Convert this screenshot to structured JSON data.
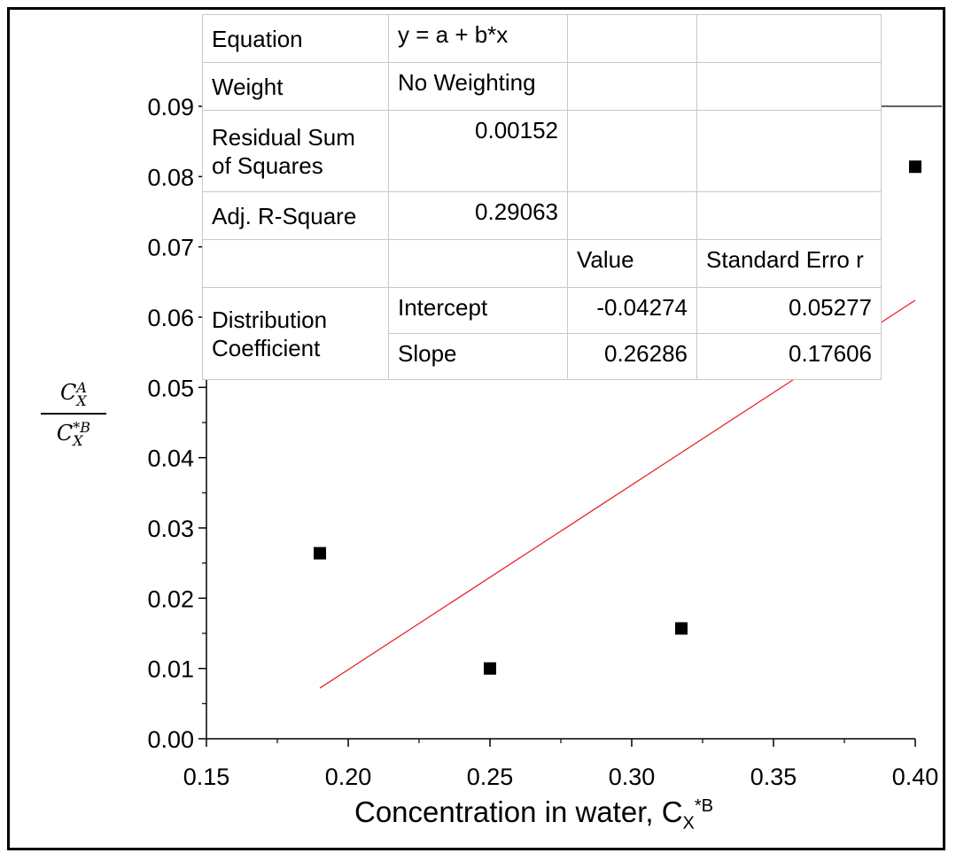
{
  "chart_data": {
    "type": "scatter",
    "x_ticks": [
      "0.15",
      "0.20",
      "0.25",
      "0.30",
      "0.35",
      "0.40"
    ],
    "y_ticks": [
      "0.00",
      "0.01",
      "0.02",
      "0.03",
      "0.04",
      "0.05",
      "0.06",
      "0.07",
      "0.08",
      "0.09"
    ],
    "xlim": [
      0.15,
      0.4
    ],
    "ylim": [
      0.0,
      0.09
    ],
    "x_minor_step": 0.025,
    "y_minor_step": 0.005,
    "points": [
      {
        "x": 0.19,
        "y": 0.0264
      },
      {
        "x": 0.25,
        "y": 0.01
      },
      {
        "x": 0.3175,
        "y": 0.0157
      },
      {
        "x": 0.4,
        "y": 0.0814
      }
    ],
    "fit_line": {
      "intercept": -0.04274,
      "slope": 0.26286,
      "x_range": [
        0.19,
        0.4
      ]
    },
    "colors": {
      "points": "#000000",
      "fit": "#e8262b"
    },
    "ylabel": {
      "num_base": "C",
      "num_sub": "X",
      "num_sup": "A",
      "den_base": "C",
      "den_sub": "X",
      "den_sup": "*B"
    },
    "xlabel": {
      "text": "Concentration in water, C",
      "sub": "X",
      "sup": "*B"
    },
    "grid": false
  },
  "stats_table": {
    "equation_label": "Equation",
    "equation_value": "y = a + b*x",
    "weight_label": "Weight",
    "weight_value": "No Weighting",
    "rss_label": "Residual Sum of Squares",
    "rss_value": "0.00152",
    "adjr2_label": "Adj. R-Square",
    "adjr2_value": "0.29063",
    "value_header": "Value",
    "stderr_header": "Standard Erro r",
    "group_label": "Distribution Coefficient",
    "intercept_label": "Intercept",
    "intercept_value": "-0.04274",
    "intercept_se": "0.05277",
    "slope_label": "Slope",
    "slope_value": "0.26286",
    "slope_se": "0.17606"
  }
}
